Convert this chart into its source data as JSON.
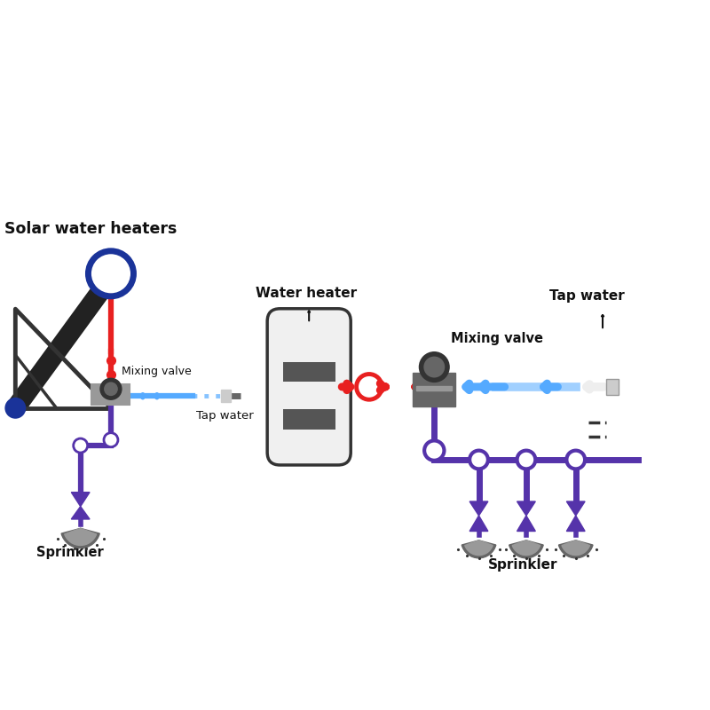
{
  "bg_color": "#ffffff",
  "labels": {
    "solar_heater": "Solar water heaters",
    "water_heater": "Water heater",
    "tap_water_left": "Tap water",
    "tap_water_right": "Tap water",
    "mixing_valve_left": "Mixing valve",
    "mixing_valve_right": "Mixing valve",
    "sprinkler_left": "Sprinkler",
    "sprinkler_right": "Sprinkler"
  },
  "colors": {
    "red": "#e82020",
    "blue": "#55aaff",
    "dark_blue": "#1a3399",
    "purple": "#5533aa",
    "dark_gray": "#333333",
    "mid_gray": "#666666",
    "gray": "#999999",
    "light_gray": "#cccccc",
    "white_gray": "#eeeeee",
    "black": "#111111",
    "white": "#ffffff",
    "tank_body": "#f0f0f0",
    "tank_stripe": "#555555",
    "collector": "#222222"
  }
}
